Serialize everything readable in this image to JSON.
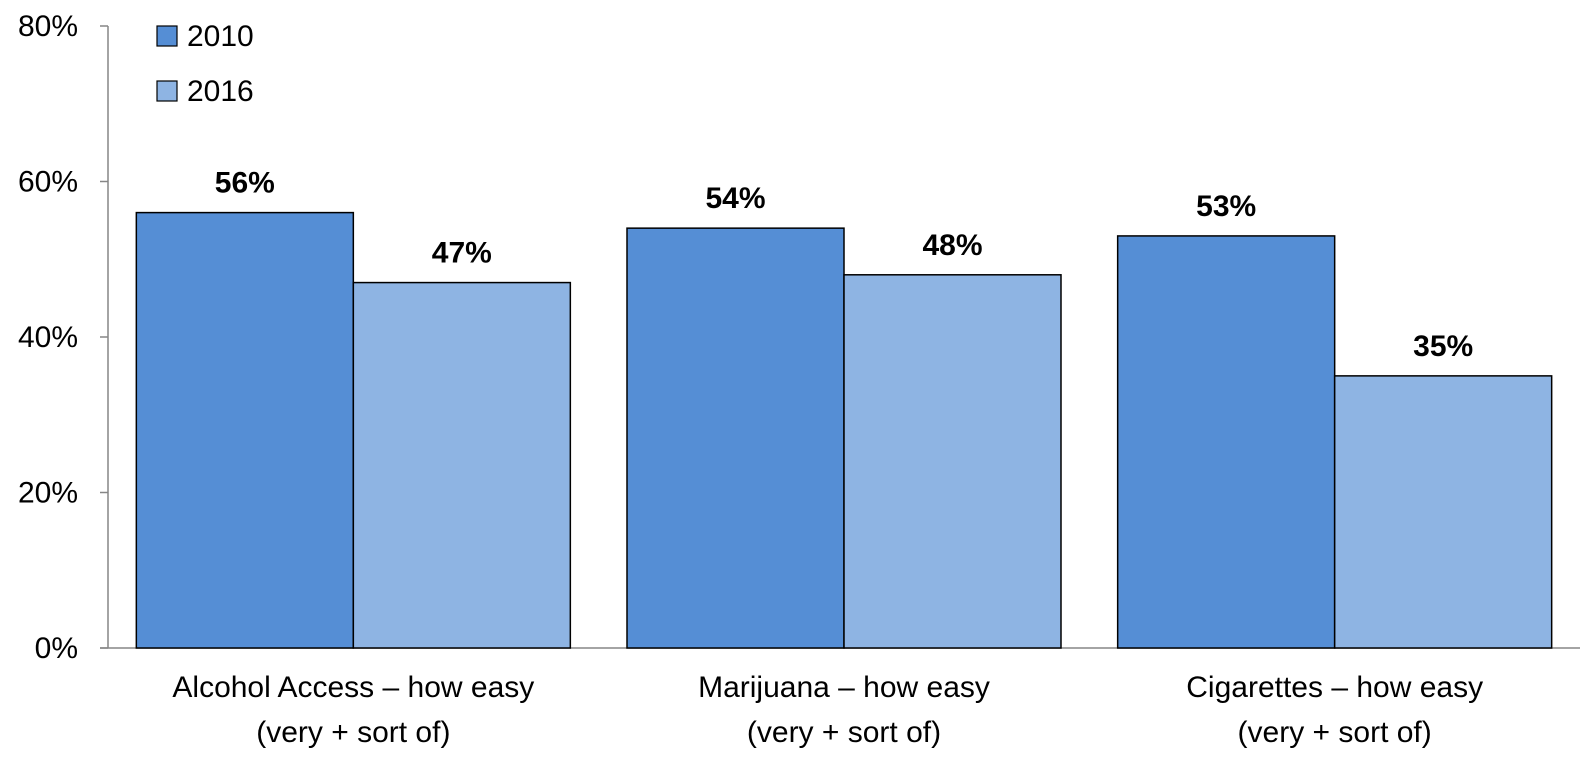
{
  "chart_data": {
    "type": "bar",
    "categories": [
      [
        "Alcohol Access – how easy",
        "(very + sort of)"
      ],
      [
        "Marijuana – how easy",
        "(very + sort of)"
      ],
      [
        "Cigarettes – how easy",
        "(very + sort of)"
      ]
    ],
    "series": [
      {
        "name": "2010",
        "values": [
          56,
          54,
          53
        ],
        "labels": [
          "56%",
          "54%",
          "53%"
        ],
        "color": "#558ed5"
      },
      {
        "name": "2016",
        "values": [
          47,
          48,
          35
        ],
        "labels": [
          "47%",
          "48%",
          "35%"
        ],
        "color": "#8eb4e3"
      }
    ],
    "ylim": [
      0,
      80
    ],
    "yticks": [
      0,
      20,
      40,
      60,
      80
    ],
    "ytick_labels": [
      "0%",
      "20%",
      "40%",
      "60%",
      "80%"
    ],
    "grid": false,
    "legend_position": "top-left",
    "title": "",
    "xlabel": "",
    "ylabel": ""
  }
}
